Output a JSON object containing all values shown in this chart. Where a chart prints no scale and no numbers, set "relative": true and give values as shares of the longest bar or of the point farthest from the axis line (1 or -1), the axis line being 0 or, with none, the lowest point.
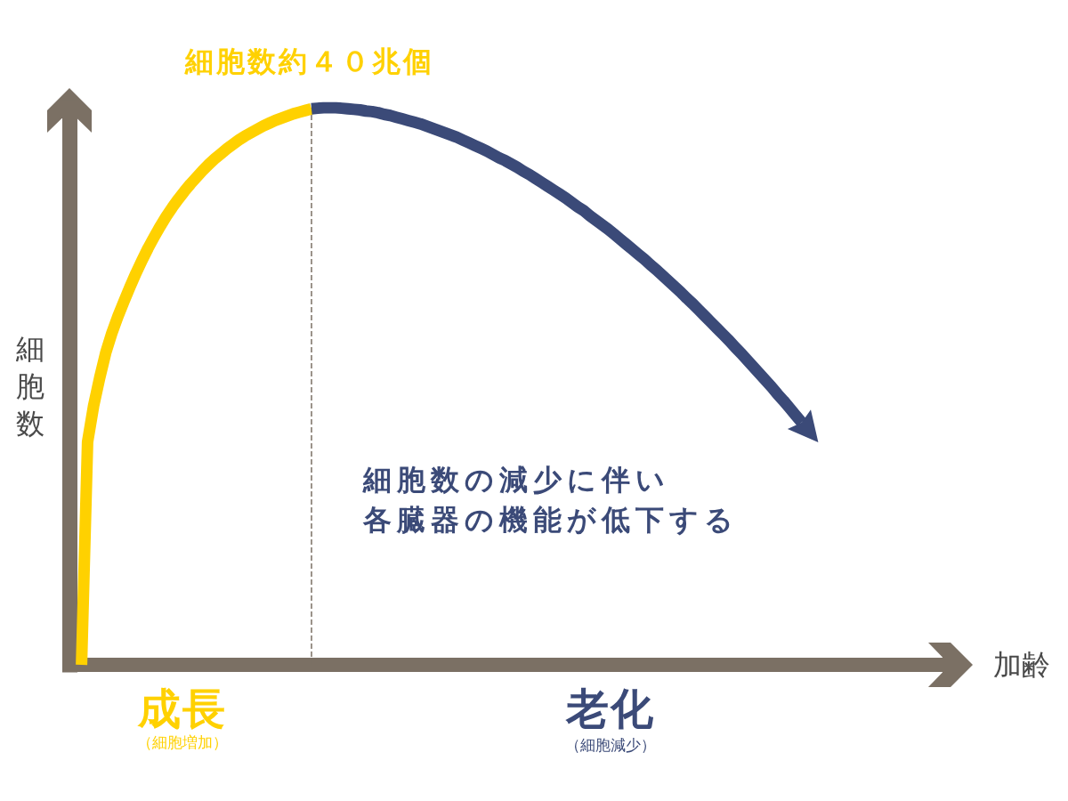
{
  "chart_data": {
    "type": "line",
    "relative": true,
    "xlabel": "加齢",
    "ylabel": "細胞数",
    "categories": [
      null,
      null,
      null,
      null,
      null,
      null,
      null,
      null,
      null,
      null,
      null,
      null,
      null,
      null,
      null,
      null,
      null,
      null,
      null,
      null,
      null,
      null,
      null,
      null,
      null,
      null,
      null,
      null,
      null,
      null,
      null,
      null,
      null,
      null,
      null,
      null,
      null,
      null,
      null,
      null,
      null,
      null,
      null,
      null,
      null,
      null,
      null,
      null,
      null,
      null,
      null,
      null,
      null,
      null,
      null,
      null,
      null,
      null,
      null,
      null,
      null,
      null,
      null,
      null,
      null,
      null,
      null,
      null,
      null,
      null,
      null,
      null,
      null,
      null,
      null,
      null,
      null,
      null,
      null,
      null,
      null,
      null,
      null,
      null,
      null,
      null,
      null,
      null,
      null,
      null,
      null,
      null,
      null,
      null,
      null,
      null,
      null,
      null,
      null,
      null,
      null,
      null,
      null,
      null,
      null,
      null,
      null,
      null,
      null,
      null,
      null,
      null,
      null,
      null,
      null,
      null,
      null,
      null,
      null,
      null,
      null,
      null,
      null,
      null,
      null,
      null,
      null,
      null,
      null,
      null,
      null,
      null,
      null,
      null,
      null,
      null,
      null,
      null,
      null,
      null,
      null,
      null,
      null,
      null,
      null,
      null
    ],
    "series": [
      {
        "color": "#ffd100",
        "values": [
          null,
          null,
          0,
          0.4,
          0.465,
          0.515,
          0.56,
          0.595,
          0.625,
          0.652,
          0.678,
          0.703,
          0.726,
          0.748,
          0.768,
          0.787,
          0.805,
          0.821,
          0.836,
          0.85,
          0.863,
          0.875,
          0.887,
          0.898,
          0.908,
          0.917,
          0.926,
          0.934,
          0.942,
          0.949,
          0.955,
          0.961,
          0.967,
          0.972,
          0.977,
          0.981,
          0.985,
          0.989,
          0.992,
          0.995,
          0.998,
          null,
          null,
          null,
          null,
          null,
          null,
          null,
          null,
          null,
          null,
          null,
          null,
          null,
          null,
          null,
          null,
          null,
          null,
          null,
          null,
          null,
          null,
          null,
          null,
          null,
          null,
          null,
          null,
          null,
          null,
          null,
          null,
          null,
          null,
          null,
          null,
          null,
          null,
          null,
          null,
          null,
          null,
          null,
          null,
          null,
          null,
          null,
          null,
          null,
          null,
          null,
          null,
          null,
          null,
          null,
          null,
          null,
          null,
          null,
          null,
          null,
          null,
          null,
          null,
          null,
          null,
          null,
          null,
          null,
          null,
          null,
          null,
          null,
          null,
          null,
          null,
          null,
          null,
          null,
          null,
          null,
          null,
          null,
          null,
          null,
          null,
          null,
          null,
          null,
          null,
          null,
          null,
          null,
          null,
          null,
          null,
          null,
          null,
          null,
          null,
          null,
          null,
          null,
          null,
          null
        ]
      },
      {
        "color": "#3b4a78",
        "values": [
          null,
          null,
          null,
          null,
          null,
          null,
          null,
          null,
          null,
          null,
          null,
          null,
          null,
          null,
          null,
          null,
          null,
          null,
          null,
          null,
          null,
          null,
          null,
          null,
          null,
          null,
          null,
          null,
          null,
          null,
          null,
          null,
          null,
          null,
          null,
          null,
          null,
          null,
          null,
          null,
          0.998,
          0.999,
          1,
          1,
          1,
          0.999,
          0.998,
          0.997,
          0.996,
          0.994,
          0.993,
          0.991,
          0.988,
          0.986,
          0.983,
          0.98,
          0.977,
          0.974,
          0.971,
          0.967,
          0.963,
          0.959,
          0.955,
          0.951,
          0.947,
          0.942,
          0.937,
          0.932,
          0.927,
          0.922,
          0.916,
          0.91,
          0.905,
          0.899,
          0.893,
          0.886,
          0.88,
          0.873,
          0.866,
          0.859,
          0.852,
          0.845,
          0.838,
          0.83,
          0.822,
          0.815,
          0.806,
          0.798,
          0.79,
          0.782,
          0.773,
          0.764,
          0.755,
          0.746,
          0.737,
          0.728,
          0.718,
          0.709,
          0.699,
          0.689,
          0.679,
          0.669,
          0.658,
          0.648,
          0.637,
          0.626,
          0.615,
          0.604,
          0.593,
          0.582,
          0.57,
          0.559,
          0.547,
          0.535,
          0.523,
          0.511,
          0.499,
          0.486,
          0.474,
          0.461,
          0.448,
          0.435,
          null,
          null,
          null,
          null,
          null,
          null,
          null,
          null,
          null,
          null,
          null,
          null,
          null,
          null,
          null,
          null,
          null,
          null,
          null,
          null,
          null,
          null,
          null,
          null
        ]
      }
    ],
    "annotations": [
      "細胞数約４０兆個",
      "成長",
      "（細胞増加）",
      "老化",
      "（細胞減少）",
      "細胞数の減少に伴い",
      "各臓器の機能が低下する"
    ]
  }
}
